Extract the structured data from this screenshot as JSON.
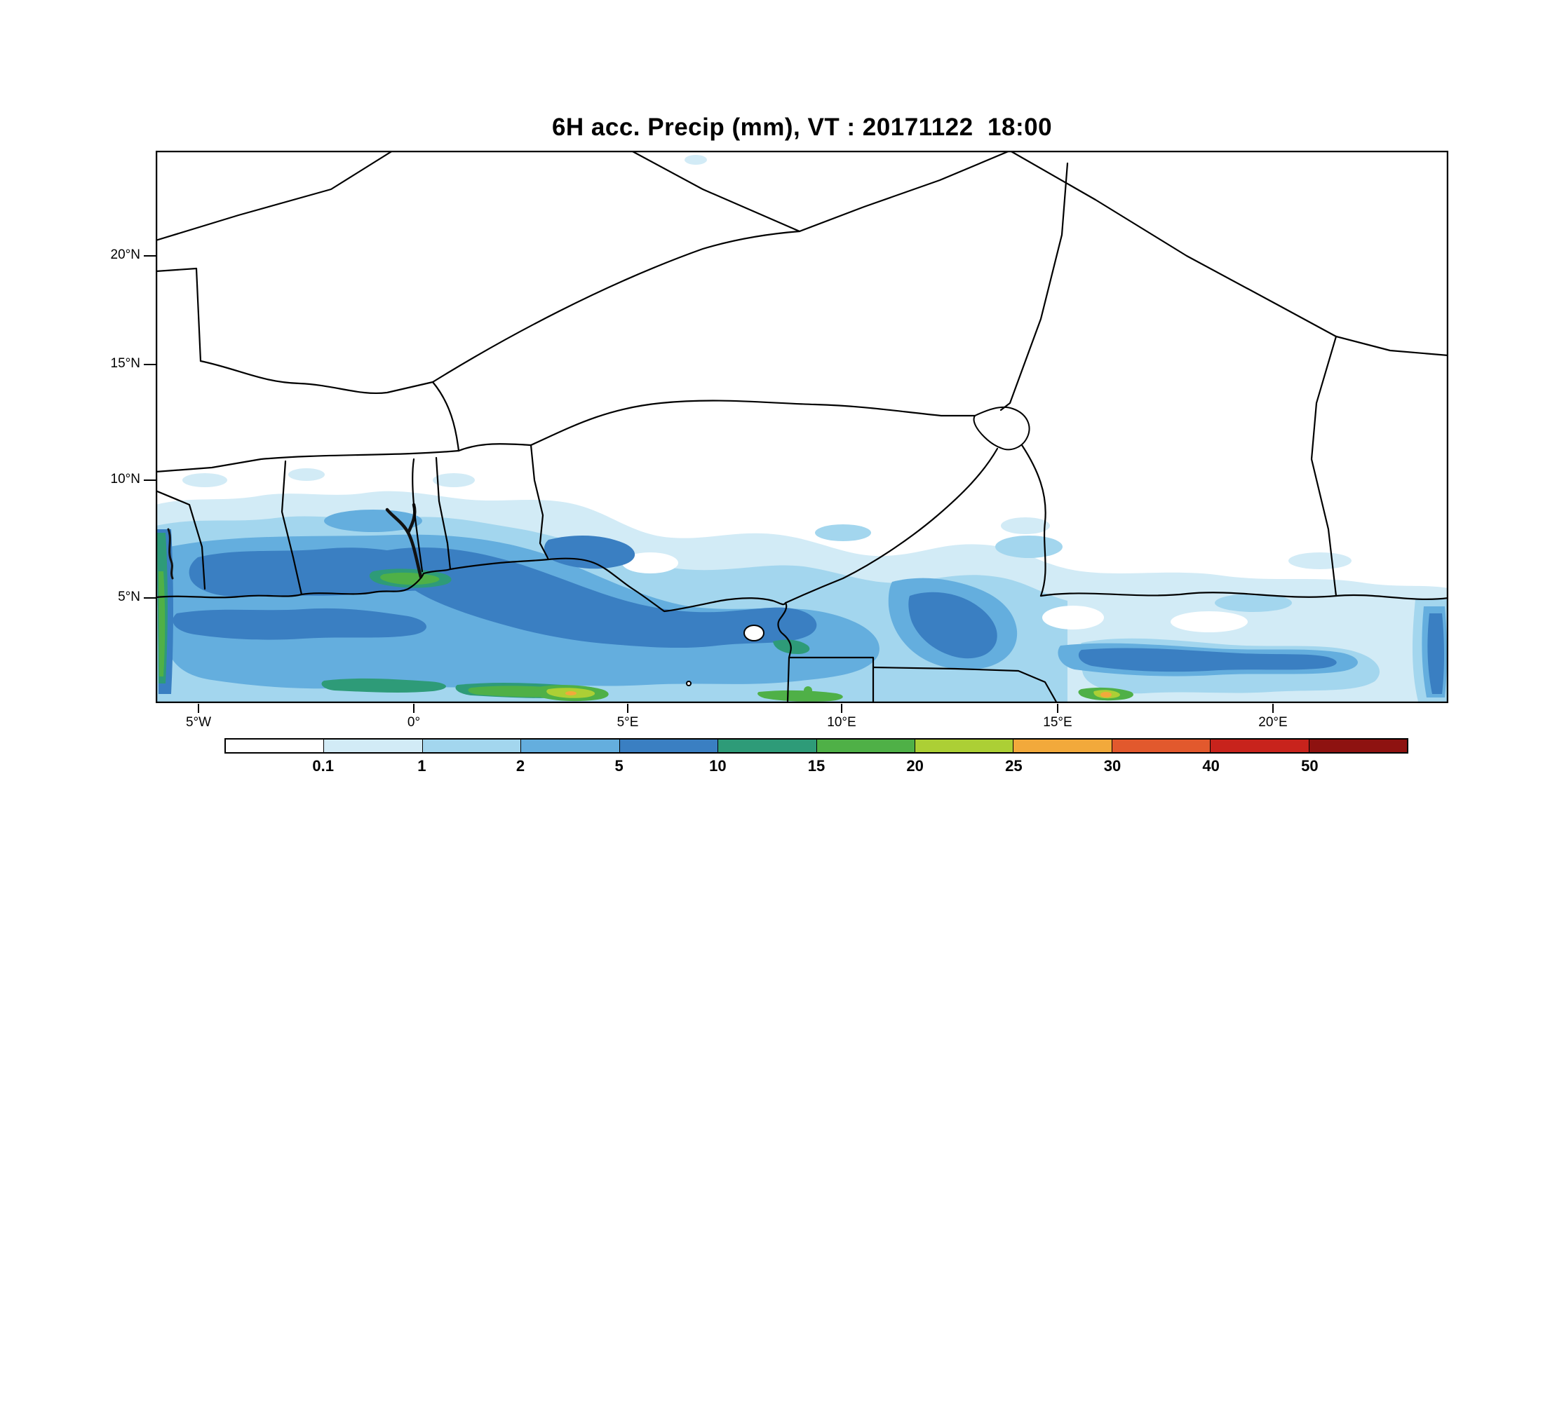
{
  "figure": {
    "title": "6H acc. Precip (mm), VT : 20171122  18:00"
  },
  "map": {
    "lat_ticks": [
      "20°N",
      "15°N",
      "10°N",
      "5°N"
    ],
    "lon_ticks": [
      "5°W",
      "0°",
      "5°E",
      "10°E",
      "15°E",
      "20°E"
    ]
  },
  "colorbar": {
    "labels": [
      "0.1",
      "1",
      "2",
      "5",
      "10",
      "15",
      "20",
      "25",
      "30",
      "40",
      "50"
    ],
    "levels_mm": [
      0.1,
      1,
      2,
      5,
      10,
      15,
      20,
      25,
      30,
      40,
      50
    ],
    "colors": [
      "#ffffff",
      "#d2ebf6",
      "#a3d6ee",
      "#64aede",
      "#3a7fc2",
      "#2e9b78",
      "#4fb047",
      "#accf35",
      "#f2a93b",
      "#e2592d",
      "#c8231c",
      "#8e1210"
    ]
  }
}
